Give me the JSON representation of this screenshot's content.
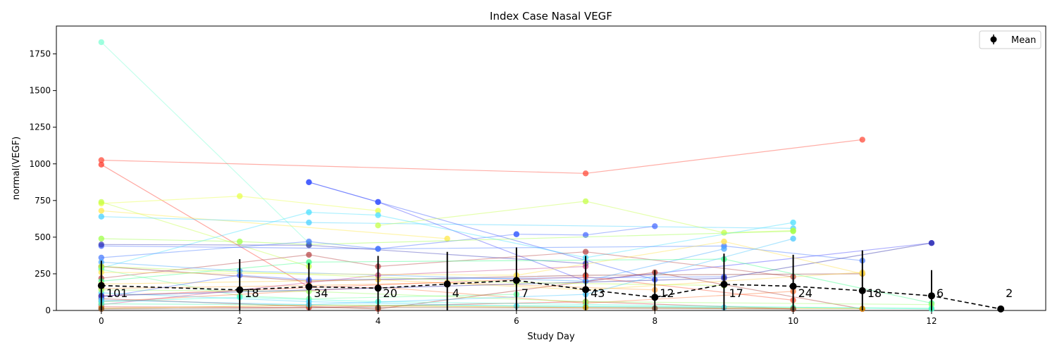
{
  "chart_data": {
    "type": "line",
    "title": "Index Case Nasal VEGF",
    "xlabel": "Study Day",
    "ylabel": "normal(VEGF)",
    "xlim": [
      -0.65,
      13.65
    ],
    "ylim": [
      0,
      1940
    ],
    "xticks": [
      0,
      2,
      4,
      6,
      8,
      10,
      12
    ],
    "yticks": [
      0,
      250,
      500,
      750,
      1000,
      1250,
      1500,
      1750
    ],
    "grid": false,
    "legend": {
      "position": "top-right",
      "entries": [
        "Mean"
      ]
    },
    "mean_series": {
      "name": "Mean",
      "color": "#000000",
      "style": "dashed",
      "points": [
        {
          "x": 0,
          "y": 170,
          "err": 170,
          "n": "101"
        },
        {
          "x": 2,
          "y": 140,
          "err": 210,
          "n": "18"
        },
        {
          "x": 3,
          "y": 162,
          "err": 162,
          "n": "34"
        },
        {
          "x": 4,
          "y": 152,
          "err": 220,
          "n": "20"
        },
        {
          "x": 5,
          "y": 180,
          "err": 220,
          "n": "4"
        },
        {
          "x": 6,
          "y": 205,
          "err": 225,
          "n": "7"
        },
        {
          "x": 7,
          "y": 142,
          "err": 230,
          "n": "43"
        },
        {
          "x": 8,
          "y": 90,
          "err": 185,
          "n": "12"
        },
        {
          "x": 9,
          "y": 178,
          "err": 210,
          "n": "17"
        },
        {
          "x": 10,
          "y": 165,
          "err": 215,
          "n": "24"
        },
        {
          "x": 11,
          "y": 135,
          "err": 275,
          "n": "18"
        },
        {
          "x": 12,
          "y": 100,
          "err": 175,
          "n": "6"
        },
        {
          "x": 13,
          "y": 10,
          "err": 5,
          "n": "2"
        }
      ]
    },
    "subjects": [
      {
        "color": "#7fffd4",
        "x": [
          0,
          3
        ],
        "y": [
          1830,
          460
        ]
      },
      {
        "color": "#ff4c3b",
        "x": [
          0,
          7,
          11
        ],
        "y": [
          1025,
          935,
          1165
        ]
      },
      {
        "color": "#ff3b2e",
        "x": [
          0,
          3
        ],
        "y": [
          995,
          160
        ]
      },
      {
        "color": "#e8ff4a",
        "x": [
          0,
          2,
          4
        ],
        "y": [
          730,
          780,
          680
        ]
      },
      {
        "color": "#c6ff4a",
        "x": [
          0,
          3
        ],
        "y": [
          740,
          300
        ]
      },
      {
        "color": "#ffe84a",
        "x": [
          0,
          5
        ],
        "y": [
          680,
          490
        ]
      },
      {
        "color": "#4ad2ff",
        "x": [
          0,
          3,
          10
        ],
        "y": [
          640,
          600,
          560
        ]
      },
      {
        "color": "#4a4cff",
        "x": [
          3,
          4,
          7,
          12
        ],
        "y": [
          875,
          740,
          200,
          460
        ]
      },
      {
        "color": "#3b5bff",
        "x": [
          3,
          4,
          8
        ],
        "y": [
          875,
          740,
          210
        ]
      },
      {
        "color": "#4a6cff",
        "x": [
          0,
          4,
          6
        ],
        "y": [
          440,
          420,
          520
        ]
      },
      {
        "color": "#4a6cff",
        "x": [
          6,
          7,
          8
        ],
        "y": [
          520,
          515,
          575
        ]
      },
      {
        "color": "#c6ff4a",
        "x": [
          4,
          7,
          9,
          10
        ],
        "y": [
          580,
          745,
          530,
          545
        ]
      },
      {
        "color": "#4adfff",
        "x": [
          0,
          3,
          4,
          7,
          10
        ],
        "y": [
          290,
          670,
          650,
          360,
          600
        ]
      },
      {
        "color": "#9fff4a",
        "x": [
          0,
          2,
          3,
          10
        ],
        "y": [
          490,
          470,
          450,
          540
        ]
      },
      {
        "color": "#3d3db8",
        "x": [
          0,
          3,
          7
        ],
        "y": [
          450,
          445,
          320
        ]
      },
      {
        "color": "#4a7cff",
        "x": [
          0,
          3,
          4,
          9,
          11
        ],
        "y": [
          360,
          470,
          420,
          440,
          340
        ]
      },
      {
        "color": "#b84a4a",
        "x": [
          0,
          3,
          4,
          7,
          10
        ],
        "y": [
          220,
          380,
          300,
          400,
          230
        ]
      },
      {
        "color": "#8c3030",
        "x": [
          0,
          3,
          7,
          11
        ],
        "y": [
          300,
          200,
          240,
          250
        ]
      },
      {
        "color": "#4aa8ff",
        "x": [
          0,
          2,
          7,
          9
        ],
        "y": [
          330,
          270,
          200,
          420
        ]
      },
      {
        "color": "#6bff9a",
        "x": [
          0,
          2,
          3,
          6
        ],
        "y": [
          280,
          100,
          80,
          110
        ]
      },
      {
        "color": "#3dff8c",
        "x": [
          0,
          3,
          9,
          12
        ],
        "y": [
          200,
          330,
          350,
          50
        ]
      },
      {
        "color": "#ffd24a",
        "x": [
          0,
          4,
          7,
          11
        ],
        "y": [
          180,
          210,
          140,
          260
        ]
      },
      {
        "color": "#ffa84a",
        "x": [
          0,
          3,
          5,
          8
        ],
        "y": [
          150,
          170,
          190,
          140
        ]
      },
      {
        "color": "#ff7a3b",
        "x": [
          0,
          4,
          7,
          10
        ],
        "y": [
          60,
          160,
          50,
          130
        ]
      },
      {
        "color": "#d42e2e",
        "x": [
          0,
          3,
          7,
          10
        ],
        "y": [
          25,
          20,
          60,
          10
        ]
      },
      {
        "color": "#b03a2e",
        "x": [
          0,
          4,
          8,
          11
        ],
        "y": [
          80,
          10,
          260,
          10
        ]
      },
      {
        "color": "#ff5a3b",
        "x": [
          0,
          7,
          10
        ],
        "y": [
          100,
          230,
          70
        ]
      },
      {
        "color": "#4ad2ff",
        "x": [
          0,
          3,
          6,
          9
        ],
        "y": [
          120,
          60,
          30,
          20
        ]
      },
      {
        "color": "#4affd4",
        "x": [
          0,
          2,
          4,
          12
        ],
        "y": [
          60,
          90,
          60,
          10
        ]
      },
      {
        "color": "#9fff6b",
        "x": [
          0,
          3,
          7,
          12
        ],
        "y": [
          140,
          130,
          60,
          40
        ]
      },
      {
        "color": "#4a6cff",
        "x": [
          0,
          2,
          3,
          9
        ],
        "y": [
          90,
          240,
          210,
          230
        ]
      },
      {
        "color": "#2e2ea8",
        "x": [
          0,
          9,
          12
        ],
        "y": [
          100,
          220,
          460
        ]
      },
      {
        "color": "#c84a8c",
        "x": [
          0,
          4,
          7
        ],
        "y": [
          40,
          240,
          300
        ]
      },
      {
        "color": "#ffe04a",
        "x": [
          0,
          6,
          9,
          11
        ],
        "y": [
          260,
          240,
          470,
          250
        ]
      },
      {
        "color": "#4affb4",
        "x": [
          0,
          7,
          10,
          12
        ],
        "y": [
          45,
          30,
          20,
          15
        ]
      },
      {
        "color": "#e0a000",
        "x": [
          0,
          3,
          7,
          11
        ],
        "y": [
          15,
          35,
          20,
          12
        ]
      },
      {
        "color": "#7a4a2e",
        "x": [
          0,
          4,
          8,
          10
        ],
        "y": [
          10,
          20,
          15,
          10
        ]
      },
      {
        "color": "#b8ff4a",
        "x": [
          0,
          6,
          9
        ],
        "y": [
          300,
          190,
          170
        ]
      },
      {
        "color": "#4ac8ff",
        "x": [
          0,
          3,
          7,
          10
        ],
        "y": [
          70,
          40,
          110,
          490
        ]
      }
    ]
  }
}
